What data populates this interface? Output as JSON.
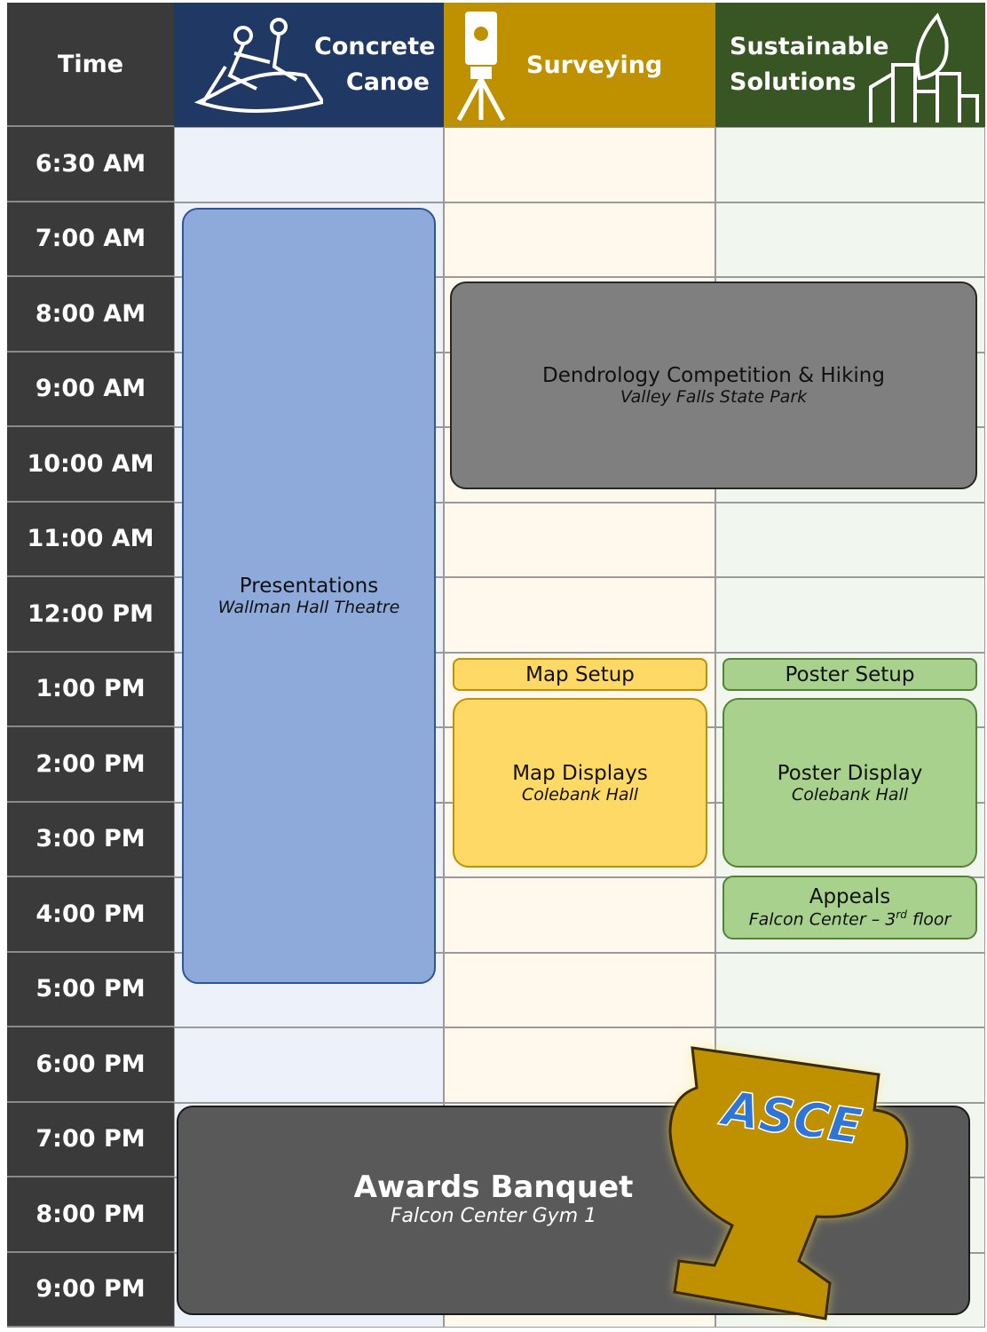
{
  "header": {
    "time": "Time",
    "columns": [
      {
        "title": "Concrete Canoe"
      },
      {
        "title": "Surveying"
      },
      {
        "title": "Sustainable Solutions"
      }
    ]
  },
  "times": [
    "6:30 AM",
    "7:00 AM",
    "8:00 AM",
    "9:00 AM",
    "10:00 AM",
    "11:00 AM",
    "12:00 PM",
    "1:00 PM",
    "2:00 PM",
    "3:00 PM",
    "4:00 PM",
    "5:00 PM",
    "6:00 PM",
    "7:00 PM",
    "8:00 PM",
    "9:00 PM"
  ],
  "events": [
    {
      "label": "Presentations",
      "location": "Wallman Hall Theatre"
    },
    {
      "label": "Dendrology Competition & Hiking",
      "location": "Valley Falls State Park"
    },
    {
      "label": "Map Setup"
    },
    {
      "label": "Poster Setup"
    },
    {
      "label": "Map Displays",
      "location": "Colebank Hall"
    },
    {
      "label": "Poster Display",
      "location": "Colebank Hall"
    },
    {
      "label": "Appeals",
      "location": [
        "Falcon Center – 3",
        "rd",
        "floor"
      ]
    },
    {
      "label": "Awards Banquet",
      "location": "Falcon Center Gym 1"
    }
  ],
  "logo_text": "ASCE"
}
